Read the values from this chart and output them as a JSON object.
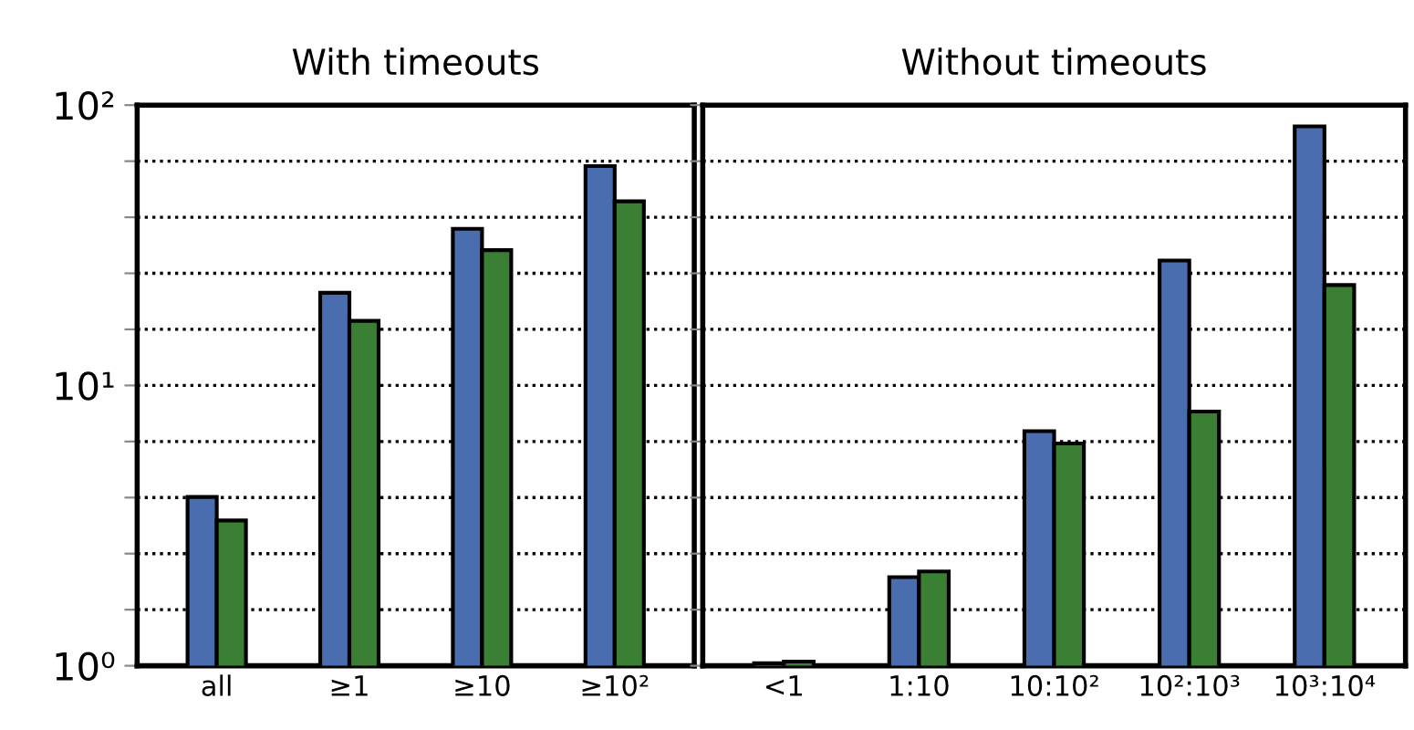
{
  "chart_data": [
    {
      "type": "bar",
      "title": "With timeouts",
      "categories": [
        "all",
        "≥1",
        "≥10",
        "≥10²"
      ],
      "series": [
        {
          "color": "#4a6db0",
          "values": [
            4.0,
            21.4,
            36.2,
            60.6
          ]
        },
        {
          "color": "#3a7f34",
          "values": [
            3.3,
            17.0,
            30.4,
            45.4
          ]
        }
      ],
      "log": true,
      "ylim": [
        1,
        100
      ],
      "yticks": [
        {
          "value": 1,
          "label": "10⁰"
        },
        {
          "value": 1.585,
          "label": null
        },
        {
          "value": 2.512,
          "label": null
        },
        {
          "value": 3.981,
          "label": null
        },
        {
          "value": 6.31,
          "label": null
        },
        {
          "value": 10,
          "label": "10¹"
        },
        {
          "value": 15.85,
          "label": null
        },
        {
          "value": 25.12,
          "label": null
        },
        {
          "value": 39.81,
          "label": null
        },
        {
          "value": 63.1,
          "label": null
        },
        {
          "value": 100,
          "label": "10²"
        }
      ],
      "grid": "y"
    },
    {
      "type": "bar",
      "title": "Without timeouts",
      "categories": [
        "<1",
        "1:10",
        "10:10²",
        "10²:10³",
        "10³:10⁴"
      ],
      "series": [
        {
          "color": "#4a6db0",
          "values": [
            1.02,
            2.07,
            6.87,
            27.9,
            84
          ]
        },
        {
          "color": "#3a7f34",
          "values": [
            1.035,
            2.17,
            6.21,
            8.07,
            22.8
          ]
        }
      ],
      "log": true,
      "ylim": [
        1,
        100
      ],
      "yticks": [
        {
          "value": 1,
          "label": null
        },
        {
          "value": 1.585,
          "label": null
        },
        {
          "value": 2.512,
          "label": null
        },
        {
          "value": 3.981,
          "label": null
        },
        {
          "value": 6.31,
          "label": null
        },
        {
          "value": 10,
          "label": null
        },
        {
          "value": 15.85,
          "label": null
        },
        {
          "value": 25.12,
          "label": null
        },
        {
          "value": 39.81,
          "label": null
        },
        {
          "value": 63.1,
          "label": null
        },
        {
          "value": 100,
          "label": null
        }
      ],
      "grid": "y",
      "tick_labels": "x"
    }
  ]
}
